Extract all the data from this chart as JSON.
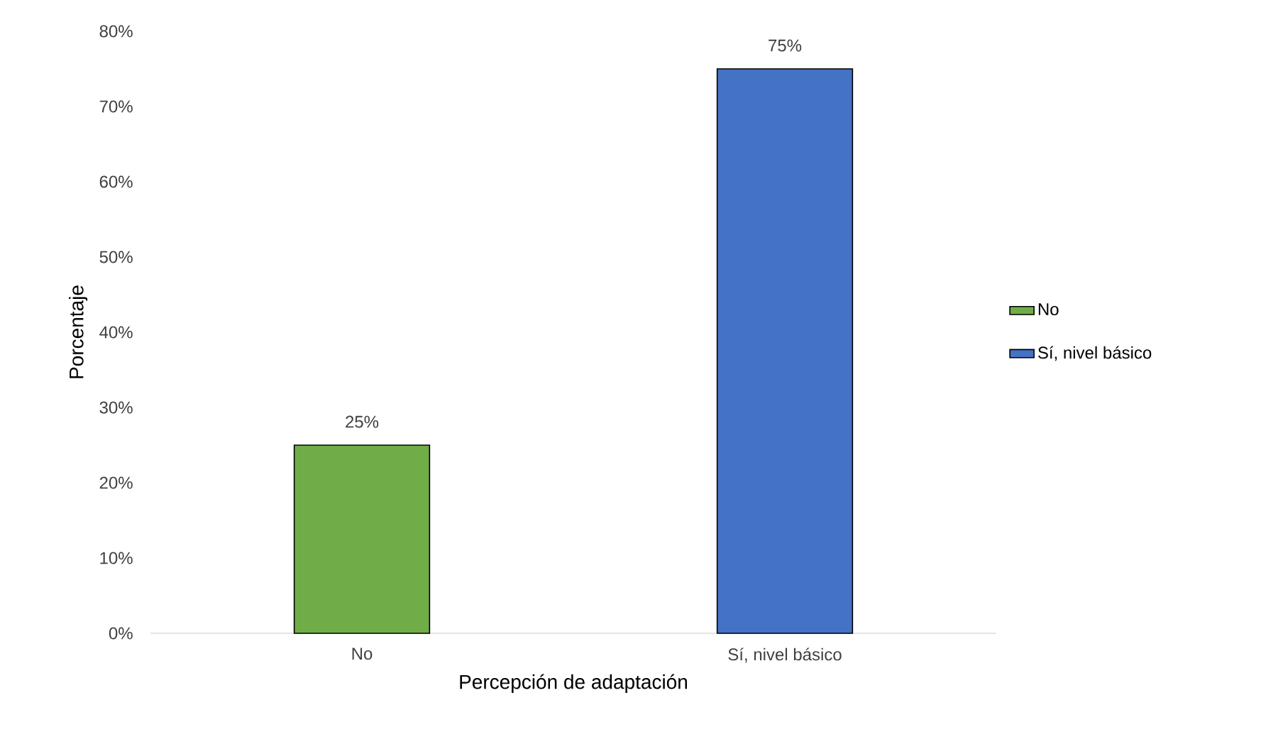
{
  "chart_data": {
    "type": "bar",
    "xlabel": "Percepción de adaptación",
    "ylabel": "Porcentaje",
    "categories": [
      "No",
      "Sí, nivel básico"
    ],
    "series": [
      {
        "name": "No",
        "color": "#70ad47",
        "values": [
          25,
          null
        ],
        "value_labels": [
          "25%",
          null
        ]
      },
      {
        "name": "Sí, nivel básico",
        "color": "#4472c4",
        "values": [
          null,
          75
        ],
        "value_labels": [
          null,
          "75%"
        ]
      }
    ],
    "ylim": [
      0,
      80
    ],
    "yticks": [
      {
        "value": 0,
        "label": "0%"
      },
      {
        "value": 10,
        "label": "10%"
      },
      {
        "value": 20,
        "label": "20%"
      },
      {
        "value": 30,
        "label": "30%"
      },
      {
        "value": 40,
        "label": "40%"
      },
      {
        "value": 50,
        "label": "50%"
      },
      {
        "value": 60,
        "label": "60%"
      },
      {
        "value": 70,
        "label": "70%"
      },
      {
        "value": 80,
        "label": "80%"
      }
    ],
    "grid": false,
    "legend": "right"
  }
}
